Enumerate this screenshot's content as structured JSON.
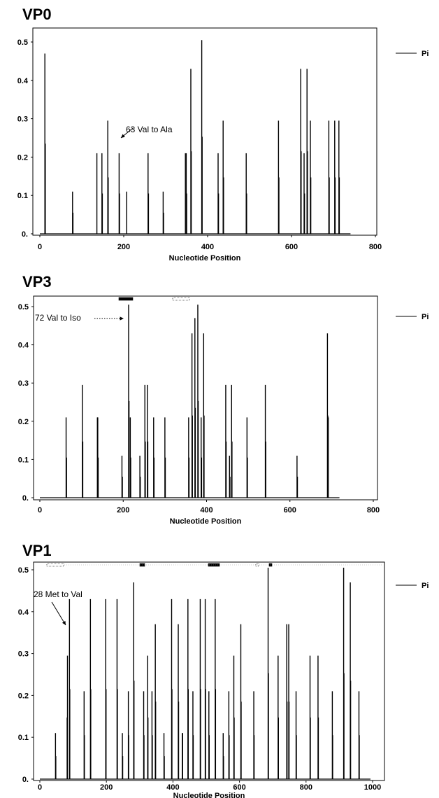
{
  "chart_data": [
    {
      "type": "bar",
      "title": "VP0",
      "xlabel": "Nucleotide Position",
      "ylabel": "",
      "xlim": [
        0,
        800
      ],
      "ylim": [
        0,
        0.52
      ],
      "x_ticks": [
        0,
        200,
        400,
        600,
        800
      ],
      "y_ticks": [
        0,
        0.1,
        0.2,
        0.3,
        0.4,
        0.5
      ],
      "y_tick_labels": [
        "0.",
        "0.1",
        "0.2",
        "0.3",
        "0.4",
        "0.5"
      ],
      "legend": "right",
      "series": [
        {
          "name": "Pi",
          "x": [
            12,
            13,
            78,
            79,
            136,
            148,
            149,
            162,
            163,
            189,
            190,
            207,
            258,
            259,
            294,
            295,
            347,
            349,
            350,
            360,
            361,
            386,
            387,
            425,
            426,
            437,
            438,
            492,
            493,
            569,
            570,
            622,
            623,
            630,
            631,
            637,
            638,
            645,
            646,
            689,
            690,
            703,
            704,
            713,
            714
          ],
          "values": [
            0.47,
            0.235,
            0.11,
            0.055,
            0.21,
            0.21,
            0.105,
            0.295,
            0.147,
            0.21,
            0.105,
            0.11,
            0.21,
            0.105,
            0.11,
            0.055,
            0.21,
            0.21,
            0.105,
            0.43,
            0.215,
            0.505,
            0.253,
            0.21,
            0.105,
            0.295,
            0.147,
            0.21,
            0.105,
            0.295,
            0.147,
            0.43,
            0.215,
            0.21,
            0.105,
            0.43,
            0.215,
            0.295,
            0.147,
            0.295,
            0.147,
            0.295,
            0.147,
            0.295,
            0.147
          ]
        }
      ],
      "annotations": [
        {
          "text": "63 Val to Ala",
          "x": 190,
          "y": 0.21
        }
      ]
    },
    {
      "type": "bar",
      "title": "VP3",
      "xlabel": "Nucleotide Position",
      "ylabel": "",
      "xlim": [
        0,
        800
      ],
      "ylim": [
        0,
        0.52
      ],
      "x_ticks": [
        0,
        200,
        400,
        600,
        800
      ],
      "y_ticks": [
        0,
        0.1,
        0.2,
        0.3,
        0.4,
        0.5
      ],
      "y_tick_labels": [
        "0.",
        "0.1",
        "0.2",
        "0.3",
        "0.4",
        "0.5"
      ],
      "legend": "right",
      "series": [
        {
          "name": "Pi",
          "x": [
            63,
            64,
            102,
            103,
            138,
            139,
            140,
            197,
            198,
            213,
            214,
            217,
            218,
            240,
            241,
            252,
            253,
            258,
            259,
            273,
            274,
            300,
            301,
            357,
            358,
            365,
            366,
            372,
            373,
            379,
            380,
            387,
            388,
            393,
            394,
            446,
            447,
            455,
            456,
            460,
            461,
            497,
            498,
            541,
            542,
            617,
            618,
            690,
            691,
            692
          ],
          "values": [
            0.21,
            0.105,
            0.295,
            0.147,
            0.21,
            0.21,
            0.105,
            0.11,
            0.055,
            0.505,
            0.253,
            0.21,
            0.105,
            0.11,
            0.055,
            0.295,
            0.147,
            0.295,
            0.147,
            0.21,
            0.105,
            0.21,
            0.105,
            0.21,
            0.105,
            0.43,
            0.215,
            0.47,
            0.235,
            0.505,
            0.253,
            0.21,
            0.105,
            0.43,
            0.215,
            0.295,
            0.147,
            0.11,
            0.055,
            0.295,
            0.147,
            0.21,
            0.105,
            0.295,
            0.147,
            0.11,
            0.055,
            0.43,
            0.215,
            0.21
          ]
        }
      ],
      "annotations": [
        {
          "text": "72 Val to Iso",
          "x": 213,
          "y": 0.43
        }
      ]
    },
    {
      "type": "bar",
      "title": "VP1",
      "xlabel": "Nucleotide Position",
      "ylabel": "",
      "xlim": [
        0,
        1000
      ],
      "ylim": [
        0,
        0.52
      ],
      "x_ticks": [
        0,
        200,
        400,
        600,
        800,
        1000
      ],
      "y_ticks": [
        0,
        0.1,
        0.2,
        0.3,
        0.4,
        0.5
      ],
      "y_tick_labels": [
        "0.",
        "0.1",
        "0.2",
        "0.3",
        "0.4",
        "0.5"
      ],
      "legend": "right",
      "series": [
        {
          "name": "Pi",
          "x": [
            47,
            48,
            82,
            83,
            89,
            90,
            133,
            134,
            152,
            153,
            198,
            199,
            232,
            233,
            248,
            249,
            266,
            267,
            282,
            283,
            312,
            313,
            324,
            325,
            337,
            338,
            347,
            348,
            373,
            374,
            396,
            397,
            416,
            417,
            428,
            429,
            445,
            446,
            460,
            461,
            482,
            483,
            497,
            498,
            508,
            509,
            527,
            528,
            551,
            552,
            568,
            569,
            583,
            584,
            604,
            605,
            643,
            644,
            686,
            687,
            716,
            717,
            742,
            743,
            748,
            749,
            770,
            771,
            812,
            813,
            836,
            837,
            879,
            880,
            913,
            914,
            933,
            934,
            959,
            960
          ],
          "values": [
            0.11,
            0.055,
            0.147,
            0.295,
            0.43,
            0.215,
            0.21,
            0.105,
            0.43,
            0.215,
            0.43,
            0.215,
            0.43,
            0.215,
            0.11,
            0.055,
            0.21,
            0.105,
            0.47,
            0.235,
            0.21,
            0.105,
            0.295,
            0.147,
            0.21,
            0.105,
            0.37,
            0.185,
            0.11,
            0.055,
            0.43,
            0.215,
            0.37,
            0.185,
            0.11,
            0.11,
            0.43,
            0.215,
            0.21,
            0.105,
            0.43,
            0.215,
            0.43,
            0.215,
            0.21,
            0.105,
            0.43,
            0.215,
            0.11,
            0.055,
            0.21,
            0.105,
            0.295,
            0.147,
            0.37,
            0.185,
            0.21,
            0.105,
            0.505,
            0.253,
            0.295,
            0.147,
            0.37,
            0.185,
            0.37,
            0.185,
            0.21,
            0.105,
            0.295,
            0.147,
            0.295,
            0.147,
            0.21,
            0.105,
            0.505,
            0.253,
            0.47,
            0.235,
            0.21,
            0.105
          ]
        }
      ],
      "annotations": [
        {
          "text": "28 Met to Val",
          "x": 83,
          "y": 0.295
        }
      ]
    }
  ]
}
